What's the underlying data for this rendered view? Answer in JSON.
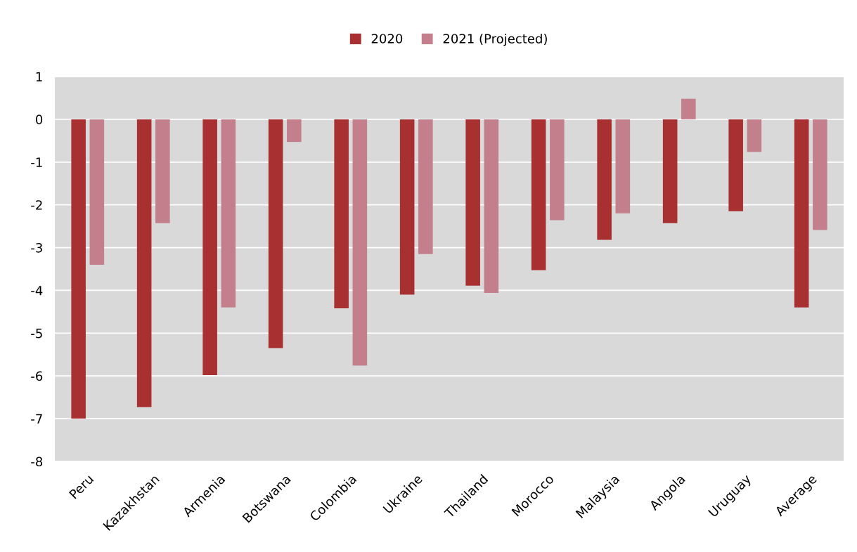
{
  "chart_data": {
    "type": "bar",
    "categories": [
      "Peru",
      "Kazakhstan",
      "Armenia",
      "Botswana",
      "Colombia",
      "Ukraine",
      "Thailand",
      "Morocco",
      "Malaysia",
      "Angola",
      "Uruguay",
      "Average"
    ],
    "series": [
      {
        "name": "2020",
        "color": "#a93030",
        "values": [
          -7.0,
          -6.73,
          -5.98,
          -5.35,
          -4.42,
          -4.1,
          -3.89,
          -3.53,
          -2.82,
          -2.43,
          -2.15,
          -4.4
        ]
      },
      {
        "name": "2021 (Projected)",
        "color": "#c47f8c",
        "values": [
          -3.4,
          -2.43,
          -4.4,
          -0.53,
          -5.76,
          -3.15,
          -4.06,
          -2.36,
          -2.2,
          0.48,
          -0.76,
          -2.59
        ]
      }
    ],
    "ylim": [
      -8,
      1
    ],
    "yticks": [
      -8,
      -7,
      -6,
      -5,
      -4,
      -3,
      -2,
      -1,
      0,
      1
    ],
    "grid": "y",
    "legend": "top"
  }
}
